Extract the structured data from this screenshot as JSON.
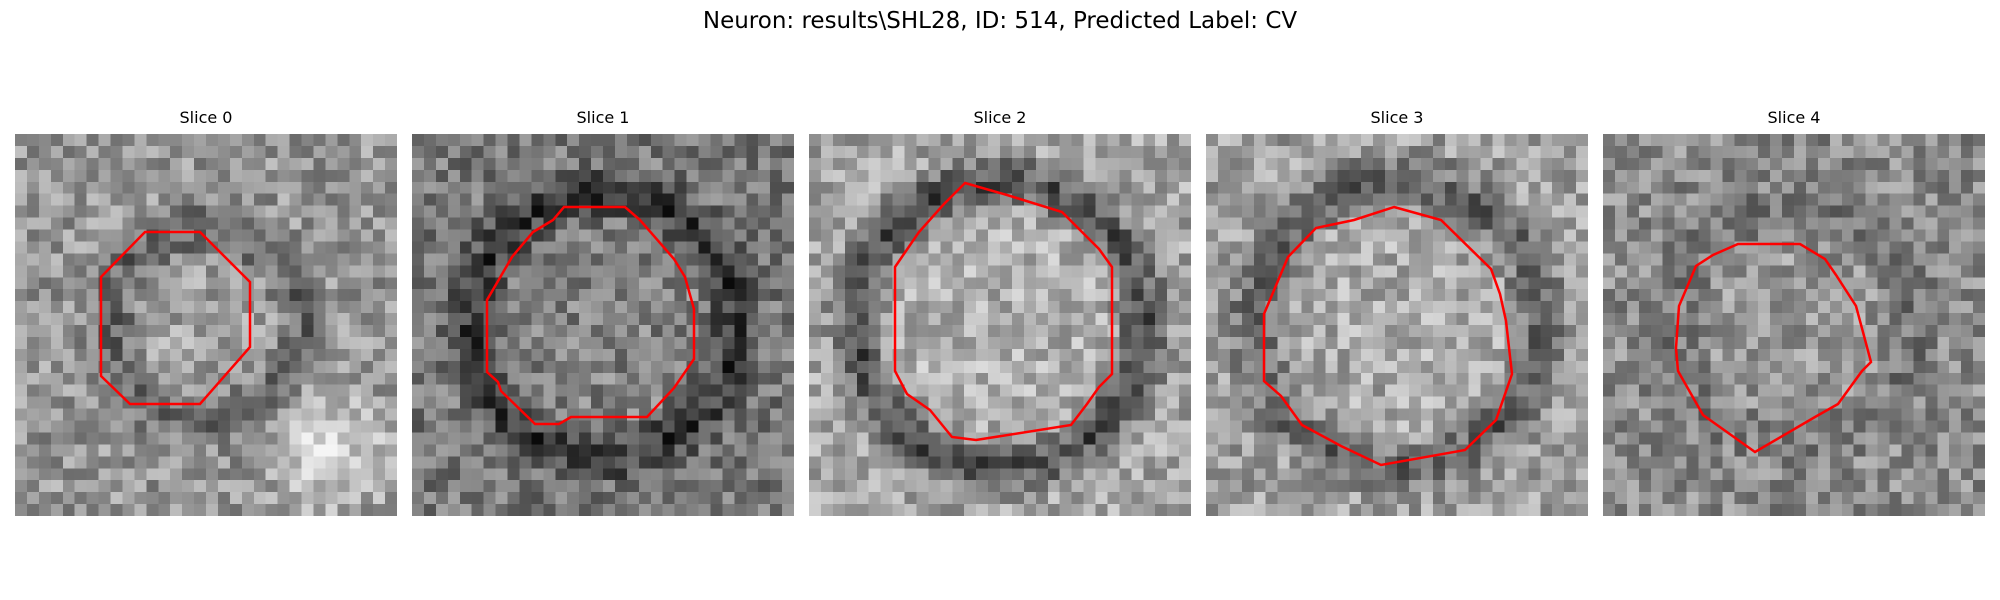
{
  "figure": {
    "title": "Neuron: results\\SHL28, ID: 514, Predicted Label: CV"
  },
  "panels": [
    {
      "title": "Slice 0",
      "background_image": "grayscale-microscopy-slice",
      "contour_color": "#ff0000"
    },
    {
      "title": "Slice 1",
      "background_image": "grayscale-microscopy-slice",
      "contour_color": "#ff0000"
    },
    {
      "title": "Slice 2",
      "background_image": "grayscale-microscopy-slice",
      "contour_color": "#ff0000"
    },
    {
      "title": "Slice 3",
      "background_image": "grayscale-microscopy-slice",
      "contour_color": "#ff0000"
    },
    {
      "title": "Slice 4",
      "background_image": "grayscale-microscopy-slice",
      "contour_color": "#ff0000"
    }
  ]
}
